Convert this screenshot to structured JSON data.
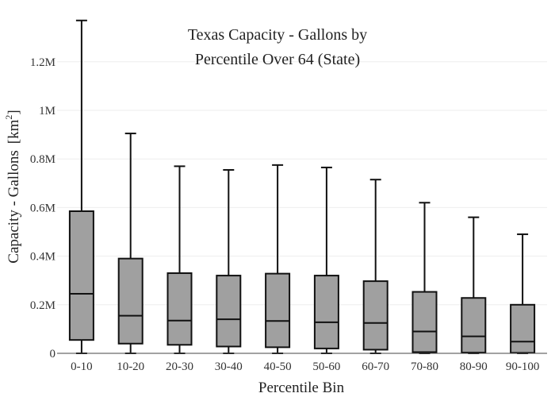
{
  "chart_data": {
    "type": "box",
    "title_lines": [
      "Texas Capacity - Gallons by",
      "Percentile Over 64 (State)"
    ],
    "xlabel": "Percentile Bin",
    "ylabel_main": "Capacity - Gallons",
    "ylabel_unit": "[km",
    "ylabel_sup": "2",
    "ylabel_close": "]",
    "ylim": [
      0,
      1400000
    ],
    "yticks": [
      {
        "value": 0,
        "label": "0"
      },
      {
        "value": 200000,
        "label": "0.2M"
      },
      {
        "value": 400000,
        "label": "0.4M"
      },
      {
        "value": 600000,
        "label": "0.6M"
      },
      {
        "value": 800000,
        "label": "0.8M"
      },
      {
        "value": 1000000,
        "label": "1M"
      },
      {
        "value": 1200000,
        "label": "1.2M"
      }
    ],
    "categories": [
      "0-10",
      "10-20",
      "20-30",
      "30-40",
      "40-50",
      "50-60",
      "60-70",
      "70-80",
      "80-90",
      "90-100"
    ],
    "boxes": [
      {
        "min": 0,
        "q1": 55000,
        "median": 245000,
        "q3": 585000,
        "max": 1370000
      },
      {
        "min": 0,
        "q1": 40000,
        "median": 155000,
        "q3": 390000,
        "max": 905000
      },
      {
        "min": 0,
        "q1": 35000,
        "median": 135000,
        "q3": 330000,
        "max": 770000
      },
      {
        "min": 0,
        "q1": 28000,
        "median": 140000,
        "q3": 320000,
        "max": 755000
      },
      {
        "min": 0,
        "q1": 25000,
        "median": 133000,
        "q3": 328000,
        "max": 775000
      },
      {
        "min": 0,
        "q1": 20000,
        "median": 128000,
        "q3": 320000,
        "max": 765000
      },
      {
        "min": 0,
        "q1": 15000,
        "median": 125000,
        "q3": 297000,
        "max": 715000
      },
      {
        "min": 0,
        "q1": 5000,
        "median": 90000,
        "q3": 253000,
        "max": 620000
      },
      {
        "min": 0,
        "q1": 3000,
        "median": 70000,
        "q3": 228000,
        "max": 560000
      },
      {
        "min": 0,
        "q1": 2000,
        "median": 48000,
        "q3": 200000,
        "max": 490000
      }
    ],
    "colors": {
      "box_fill": "#a0a0a0",
      "box_stroke": "#111111"
    }
  }
}
